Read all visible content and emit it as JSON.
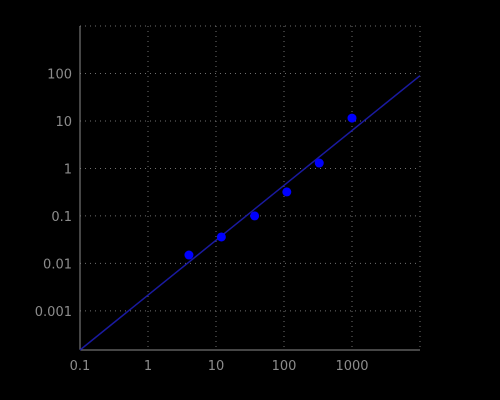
{
  "chart_data": {
    "type": "scatter",
    "title": "",
    "xlabel": "",
    "ylabel": "",
    "x_scale": "log",
    "y_scale": "log",
    "xlim": [
      0.1,
      10000
    ],
    "ylim": [
      0.00015,
      1000
    ],
    "grid": true,
    "x_ticks": [
      {
        "value": 0.1,
        "label": "0.1"
      },
      {
        "value": 1,
        "label": "1"
      },
      {
        "value": 10,
        "label": "10"
      },
      {
        "value": 100,
        "label": "100"
      },
      {
        "value": 1000,
        "label": "1000"
      }
    ],
    "y_ticks": [
      {
        "value": 0.001,
        "label": "0.001"
      },
      {
        "value": 0.01,
        "label": "0.01"
      },
      {
        "value": 0.1,
        "label": "0.1"
      },
      {
        "value": 1,
        "label": "1"
      },
      {
        "value": 10,
        "label": "10"
      },
      {
        "value": 100,
        "label": "100"
      }
    ],
    "series": [
      {
        "type": "scatter",
        "color": "#0000ff",
        "x": [
          4,
          12,
          37,
          110,
          330,
          1000
        ],
        "y": [
          0.015,
          0.036,
          0.1,
          0.32,
          1.3,
          11.5
        ]
      },
      {
        "type": "line",
        "color": "#1a1aa0",
        "x": [
          0.1,
          10000
        ],
        "y": [
          0.00015,
          90
        ]
      }
    ]
  }
}
